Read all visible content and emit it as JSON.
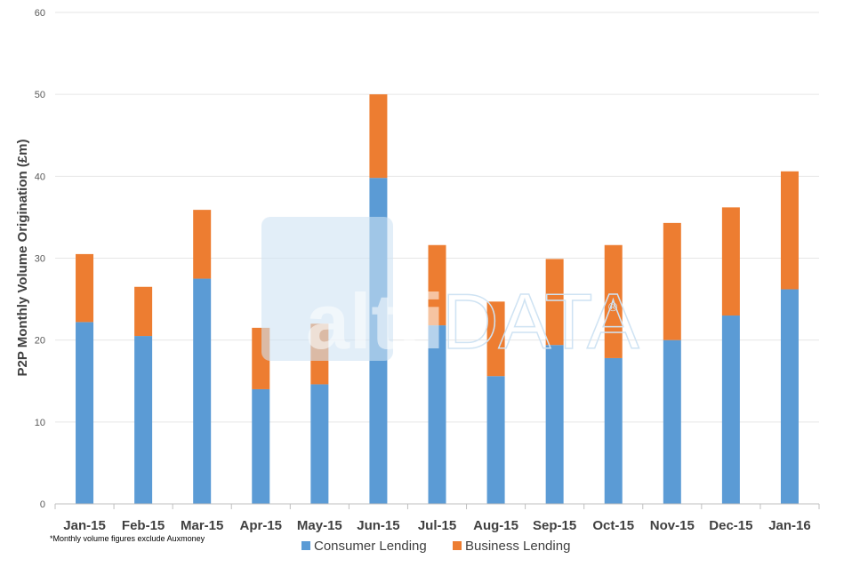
{
  "chart_data": {
    "type": "bar",
    "stacked": true,
    "categories": [
      "Jan-15",
      "Feb-15",
      "Mar-15",
      "Apr-15",
      "May-15",
      "Jun-15",
      "Jul-15",
      "Aug-15",
      "Sep-15",
      "Oct-15",
      "Nov-15",
      "Dec-15",
      "Jan-16"
    ],
    "series": [
      {
        "name": "Consumer Lending",
        "color": "#5b9bd5",
        "values": [
          22.2,
          20.5,
          27.5,
          14.0,
          14.6,
          39.8,
          21.8,
          15.6,
          19.4,
          17.8,
          20.0,
          23.0,
          26.2
        ]
      },
      {
        "name": "Business Lending",
        "color": "#ed7d31",
        "values": [
          8.3,
          6.0,
          8.4,
          7.5,
          7.4,
          10.2,
          9.8,
          9.1,
          10.5,
          13.8,
          14.3,
          13.2,
          14.4
        ]
      }
    ],
    "ylabel": "P2P Monthly Volume Origination (£m)",
    "xlabel": "",
    "ylim": [
      0,
      60
    ],
    "yticks": [
      0,
      10,
      20,
      30,
      40,
      50,
      60
    ],
    "grid": true,
    "legend_position": "bottom-center",
    "footnote": "*Monthly volume figures exclude Auxmoney",
    "watermark": {
      "text_part1": "alt",
      "text_part2": "fi",
      "text_part3": "DATA",
      "symbol": "®"
    }
  }
}
